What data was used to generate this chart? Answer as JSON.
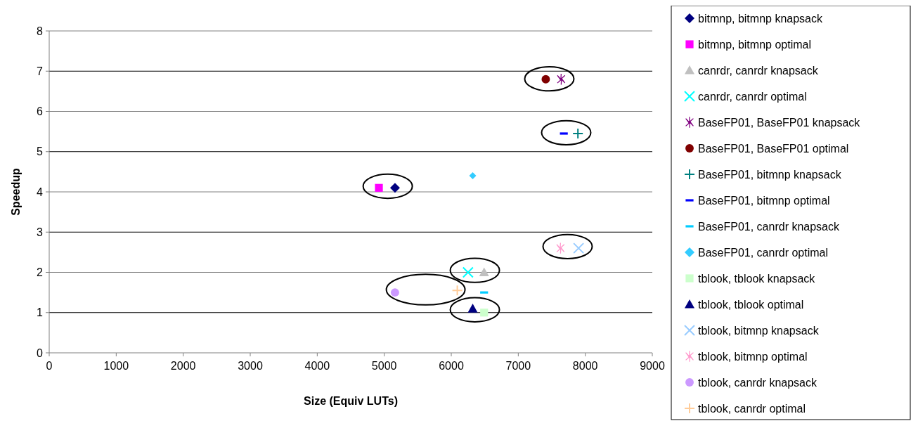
{
  "chart_data": {
    "type": "scatter",
    "xlabel": "Size (Equiv LUTs)",
    "ylabel": "Speedup",
    "xlim": [
      0,
      9000
    ],
    "xticks": [
      0,
      1000,
      2000,
      3000,
      4000,
      5000,
      6000,
      7000,
      8000,
      9000
    ],
    "ylim": [
      0,
      8
    ],
    "yticks": [
      0,
      1,
      2,
      3,
      4,
      5,
      6,
      7,
      8
    ],
    "grid": "y",
    "legend": "right",
    "series": [
      {
        "name": "bitmnp, bitmnp knapsack",
        "color": "#000080",
        "marker": "diamond",
        "x": [
          5160
        ],
        "values": [
          4.1
        ]
      },
      {
        "name": "bitmnp, bitmnp optimal",
        "color": "#ff00ff",
        "marker": "square",
        "x": [
          4920
        ],
        "values": [
          4.1
        ]
      },
      {
        "name": "canrdr, canrdr knapsack",
        "color": "#c0c0c0",
        "marker": "triangle",
        "x": [
          6490
        ],
        "values": [
          2.0
        ]
      },
      {
        "name": "canrdr, canrdr optimal",
        "color": "#00ffff",
        "marker": "cross",
        "x": [
          6250
        ],
        "values": [
          2.0
        ]
      },
      {
        "name": "BaseFP01, BaseFP01 knapsack",
        "color": "#800080",
        "marker": "star",
        "x": [
          7640
        ],
        "values": [
          6.8
        ]
      },
      {
        "name": "BaseFP01, BaseFP01 optimal",
        "color": "#800000",
        "marker": "circle",
        "x": [
          7410
        ],
        "values": [
          6.8
        ]
      },
      {
        "name": "BaseFP01, bitmnp knapsack",
        "color": "#008080",
        "marker": "plus",
        "x": [
          7890
        ],
        "values": [
          5.45
        ]
      },
      {
        "name": "BaseFP01, bitmnp optimal",
        "color": "#0000ff",
        "x": [
          7680
        ],
        "values": [
          5.45
        ]
      },
      {
        "name": "BaseFP01, canrdr knapsack",
        "color": "#00ccff",
        "x": [
          6490
        ],
        "values": [
          1.5
        ]
      },
      {
        "name": "BaseFP01, canrdr optimal",
        "color": "#33ccff",
        "marker": "diamond",
        "x": [
          6320
        ],
        "values": [
          4.4
        ]
      },
      {
        "name": "tblook, tblook knapsack",
        "color": "#ccffcc",
        "marker": "square",
        "x": [
          6490
        ],
        "values": [
          1.0
        ]
      },
      {
        "name": "tblook, tblook optimal",
        "color": "#000080",
        "marker": "triangle",
        "x": [
          6320
        ],
        "values": [
          1.1
        ]
      },
      {
        "name": "tblook, bitmnp knapsack",
        "color": "#99ccff",
        "marker": "cross",
        "x": [
          7900
        ],
        "values": [
          2.6
        ]
      },
      {
        "name": "tblook, bitmnp optimal",
        "color": "#ff99cc",
        "marker": "star",
        "x": [
          7630
        ],
        "values": [
          2.6
        ]
      },
      {
        "name": "tblook, canrdr knapsack",
        "color": "#cc99ff",
        "marker": "circle",
        "x": [
          5160
        ],
        "values": [
          1.5
        ]
      },
      {
        "name": "tblook, canrdr optimal",
        "color": "#ffcc99",
        "marker": "plus",
        "x": [
          6090
        ],
        "values": [
          1.55
        ]
      }
    ]
  }
}
